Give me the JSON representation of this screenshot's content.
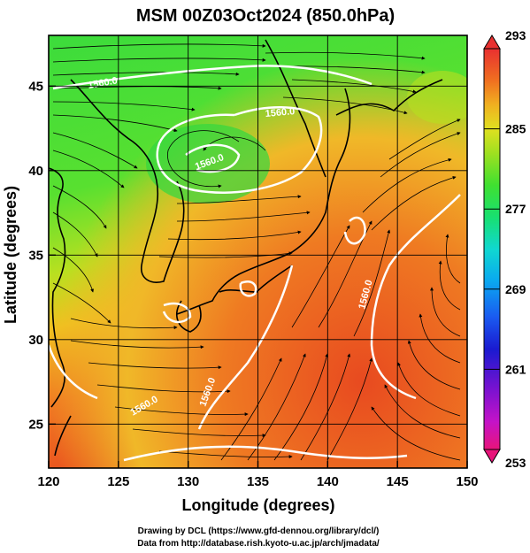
{
  "title": "MSM 00Z03Oct2024 (850.0hPa)",
  "x_axis": {
    "label": "Longitude (degrees)",
    "min": 120,
    "max": 150,
    "ticks": [
      120,
      125,
      130,
      135,
      140,
      145,
      150
    ],
    "tick_labels": [
      "120",
      "125",
      "130",
      "135",
      "140",
      "145",
      "150"
    ]
  },
  "y_axis": {
    "label": "Latitude  (degrees)",
    "min": 22.4,
    "max": 48,
    "ticks": [
      25,
      30,
      35,
      40,
      45
    ],
    "tick_labels": [
      "25",
      "30",
      "35",
      "40",
      "45"
    ]
  },
  "colorbar": {
    "min": 253,
    "max": 293,
    "tick_labels": [
      "293",
      "285",
      "277",
      "269",
      "261",
      "253"
    ],
    "colors": [
      "#e8147a",
      "#c413c8",
      "#7a12d0",
      "#1a1ad0",
      "#1a5af0",
      "#0aa8f0",
      "#10d8d0",
      "#18e070",
      "#40e030",
      "#a0e020",
      "#e0e020",
      "#f0b020",
      "#f07020",
      "#e84020",
      "#e83030"
    ]
  },
  "contours": [
    {
      "label": "1560.0"
    },
    {
      "label": "1560.0"
    },
    {
      "label": "1560.0"
    },
    {
      "label": "1560.0"
    },
    {
      "label": "1560.0"
    },
    {
      "label": "1560.0"
    }
  ],
  "credits": {
    "line1": "Drawing by DCL (https://www.gfd-dennou.org/library/dcl/)",
    "line2": "Data from http://database.rish.kyoto-u.ac.jp/arch/jmadata/"
  }
}
